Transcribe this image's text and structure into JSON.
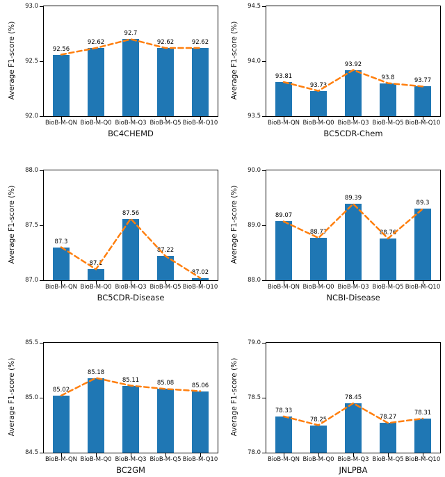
{
  "figure": {
    "ylabel": "Average F1-score (%)",
    "bar_color": "#1f77b4",
    "line_color": "#ff7f0e",
    "categories": [
      "BioB-M-QN",
      "BioB-M-Q0",
      "BioB-M-Q3",
      "BioB-M-Q5",
      "BioB-M-Q10"
    ]
  },
  "chart_data": [
    {
      "type": "bar",
      "xlabel": "BC4CHEMD",
      "ylabel": "Average F1-score (%)",
      "categories": [
        "BioB-M-QN",
        "BioB-M-Q0",
        "BioB-M-Q3",
        "BioB-M-Q5",
        "BioB-M-Q10"
      ],
      "values": [
        92.56,
        92.62,
        92.7,
        92.62,
        92.62
      ],
      "value_labels": [
        "92.56",
        "92.62",
        "92.7",
        "92.62",
        "92.62"
      ],
      "ylim": [
        92.0,
        93.0
      ],
      "yticks": [
        "92.0",
        "92.5",
        "93.0"
      ],
      "overlay": "dashed-trend-line",
      "grid": false,
      "legend": "none"
    },
    {
      "type": "bar",
      "xlabel": "BC5CDR-Chem",
      "ylabel": "Average F1-score (%)",
      "categories": [
        "BioB-M-QN",
        "BioB-M-Q0",
        "BioB-M-Q3",
        "BioB-M-Q5",
        "BioB-M-Q10"
      ],
      "values": [
        93.81,
        93.73,
        93.92,
        93.8,
        93.77
      ],
      "value_labels": [
        "93.81",
        "93.73",
        "93.92",
        "93.8",
        "93.77"
      ],
      "ylim": [
        93.5,
        94.5
      ],
      "yticks": [
        "93.5",
        "94.0",
        "94.5"
      ],
      "overlay": "dashed-trend-line",
      "grid": false,
      "legend": "none"
    },
    {
      "type": "bar",
      "xlabel": "BC5CDR-Disease",
      "ylabel": "Average F1-score (%)",
      "categories": [
        "BioB-M-QN",
        "BioB-M-Q0",
        "BioB-M-Q3",
        "BioB-M-Q5",
        "BioB-M-Q10"
      ],
      "values": [
        87.3,
        87.1,
        87.56,
        87.22,
        87.02
      ],
      "value_labels": [
        "87.3",
        "87.1",
        "87.56",
        "87.22",
        "87.02"
      ],
      "ylim": [
        87.0,
        88.0
      ],
      "yticks": [
        "87.0",
        "87.5",
        "88.0"
      ],
      "overlay": "dashed-trend-line",
      "grid": false,
      "legend": "none"
    },
    {
      "type": "bar",
      "xlabel": "NCBI-Disease",
      "ylabel": "Average F1-score (%)",
      "categories": [
        "BioB-M-QN",
        "BioB-M-Q0",
        "BioB-M-Q3",
        "BioB-M-Q5",
        "BioB-M-Q10"
      ],
      "values": [
        89.07,
        88.77,
        89.39,
        88.76,
        89.3
      ],
      "value_labels": [
        "89.07",
        "88.77",
        "89.39",
        "88.76",
        "89.3"
      ],
      "ylim": [
        88.0,
        90.0
      ],
      "yticks": [
        "88.0",
        "89.0",
        "90.0"
      ],
      "overlay": "dashed-trend-line",
      "grid": false,
      "legend": "none"
    },
    {
      "type": "bar",
      "xlabel": "BC2GM",
      "ylabel": "Average F1-score (%)",
      "categories": [
        "BioB-M-QN",
        "BioB-M-Q0",
        "BioB-M-Q3",
        "BioB-M-Q5",
        "BioB-M-Q10"
      ],
      "values": [
        85.02,
        85.18,
        85.11,
        85.08,
        85.06
      ],
      "value_labels": [
        "85.02",
        "85.18",
        "85.11",
        "85.08",
        "85.06"
      ],
      "ylim": [
        84.5,
        85.5
      ],
      "yticks": [
        "84.5",
        "85.0",
        "85.5"
      ],
      "overlay": "dashed-trend-line",
      "grid": false,
      "legend": "none"
    },
    {
      "type": "bar",
      "xlabel": "JNLPBA",
      "ylabel": "Average F1-score (%)",
      "categories": [
        "BioB-M-QN",
        "BioB-M-Q0",
        "BioB-M-Q3",
        "BioB-M-Q5",
        "BioB-M-Q10"
      ],
      "values": [
        78.33,
        78.25,
        78.45,
        78.27,
        78.31
      ],
      "value_labels": [
        "78.33",
        "78.25",
        "78.45",
        "78.27",
        "78.31"
      ],
      "ylim": [
        78.0,
        79.0
      ],
      "yticks": [
        "78.0",
        "78.5",
        "79.0"
      ],
      "overlay": "dashed-trend-line",
      "grid": false,
      "legend": "none"
    }
  ]
}
